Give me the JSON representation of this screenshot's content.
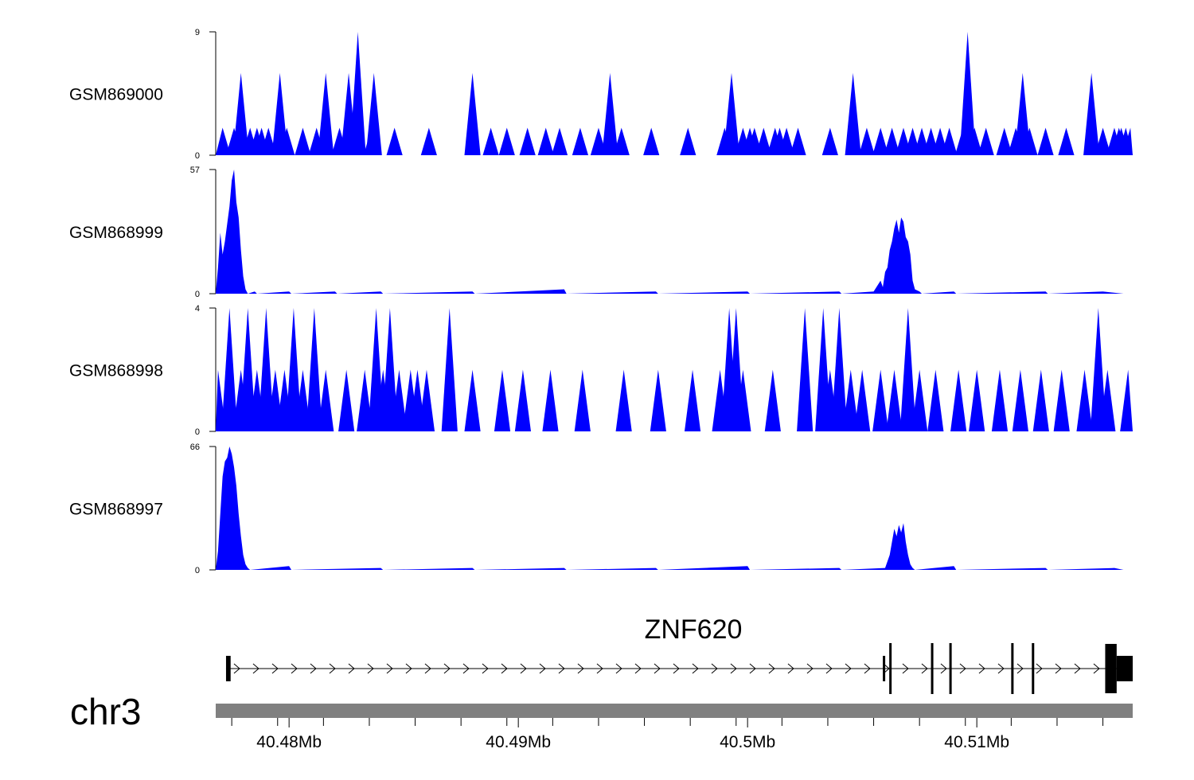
{
  "chart_data": {
    "type": "area",
    "chromosome": "chr3",
    "xlim": [
      40.4768,
      40.5168
    ],
    "x_ticks": [
      {
        "value": 40.48,
        "label": "40.48Mb"
      },
      {
        "value": 40.49,
        "label": "40.49Mb"
      },
      {
        "value": 40.5,
        "label": "40.5Mb"
      },
      {
        "value": 40.51,
        "label": "40.51Mb"
      }
    ],
    "tracks": [
      {
        "name": "GSM869000",
        "ylim": [
          0,
          9
        ],
        "y_tick_labels": [
          "0",
          "9"
        ],
        "color": "#0000ff",
        "peaks": [
          [
            40.4771,
            2
          ],
          [
            40.4776,
            2
          ],
          [
            40.4779,
            6
          ],
          [
            40.4783,
            2
          ],
          [
            40.4786,
            2
          ],
          [
            40.4788,
            2
          ],
          [
            40.4791,
            2
          ],
          [
            40.4795,
            2
          ],
          [
            40.4796,
            6
          ],
          [
            40.4799,
            2
          ],
          [
            40.4806,
            2
          ],
          [
            40.4812,
            2
          ],
          [
            40.4816,
            6
          ],
          [
            40.4822,
            2
          ],
          [
            40.4826,
            6
          ],
          [
            40.483,
            9
          ],
          [
            40.4836,
            2
          ],
          [
            40.4837,
            6
          ],
          [
            40.4846,
            2
          ],
          [
            40.4861,
            2
          ],
          [
            40.488,
            6
          ],
          [
            40.4888,
            2
          ],
          [
            40.4895,
            2
          ],
          [
            40.4904,
            2
          ],
          [
            40.4912,
            2
          ],
          [
            40.4918,
            2
          ],
          [
            40.4927,
            2
          ],
          [
            40.4935,
            2
          ],
          [
            40.494,
            6
          ],
          [
            40.4945,
            2
          ],
          [
            40.4958,
            2
          ],
          [
            40.4974,
            2
          ],
          [
            40.499,
            2
          ],
          [
            40.4993,
            6
          ],
          [
            40.4998,
            2
          ],
          [
            40.5001,
            2
          ],
          [
            40.5003,
            2
          ],
          [
            40.5007,
            2
          ],
          [
            40.5012,
            2
          ],
          [
            40.5014,
            2
          ],
          [
            40.5017,
            2
          ],
          [
            40.5022,
            2
          ],
          [
            40.5036,
            2
          ],
          [
            40.5046,
            6
          ],
          [
            40.5052,
            2
          ],
          [
            40.5058,
            2
          ],
          [
            40.5063,
            2
          ],
          [
            40.5068,
            2
          ],
          [
            40.5072,
            2
          ],
          [
            40.5076,
            2
          ],
          [
            40.508,
            2
          ],
          [
            40.5084,
            2
          ],
          [
            40.5088,
            2
          ],
          [
            40.5094,
            2
          ],
          [
            40.5096,
            9
          ],
          [
            40.5099,
            2
          ],
          [
            40.5104,
            2
          ],
          [
            40.5112,
            2
          ],
          [
            40.5117,
            2
          ],
          [
            40.512,
            6
          ],
          [
            40.5123,
            2
          ],
          [
            40.513,
            2
          ],
          [
            40.5139,
            2
          ],
          [
            40.515,
            6
          ],
          [
            40.5155,
            2
          ],
          [
            40.516,
            2
          ],
          [
            40.5162,
            2
          ],
          [
            40.5163,
            2
          ],
          [
            40.5165,
            2
          ],
          [
            40.5167,
            2
          ]
        ]
      },
      {
        "name": "GSM868999",
        "ylim": [
          0,
          57
        ],
        "y_tick_labels": [
          "0",
          "57"
        ],
        "color": "#0000ff",
        "profile": [
          [
            40.4768,
            0
          ],
          [
            40.4769,
            12
          ],
          [
            40.477,
            28
          ],
          [
            40.4771,
            18
          ],
          [
            40.4772,
            24
          ],
          [
            40.4773,
            32
          ],
          [
            40.4774,
            40
          ],
          [
            40.4775,
            52
          ],
          [
            40.4776,
            57
          ],
          [
            40.4777,
            42
          ],
          [
            40.4778,
            35
          ],
          [
            40.4779,
            20
          ],
          [
            40.478,
            8
          ],
          [
            40.4781,
            2
          ],
          [
            40.4782,
            0
          ],
          [
            40.4785,
            1
          ],
          [
            40.4786,
            0
          ],
          [
            40.48,
            1
          ],
          [
            40.4801,
            0
          ],
          [
            40.482,
            1
          ],
          [
            40.4821,
            0
          ],
          [
            40.484,
            1
          ],
          [
            40.4841,
            0
          ],
          [
            40.488,
            1
          ],
          [
            40.4881,
            0
          ],
          [
            40.492,
            2
          ],
          [
            40.4921,
            0
          ],
          [
            40.496,
            1
          ],
          [
            40.4961,
            0
          ],
          [
            40.5,
            1
          ],
          [
            40.5001,
            0
          ],
          [
            40.504,
            1
          ],
          [
            40.5041,
            0
          ],
          [
            40.5055,
            1
          ],
          [
            40.5058,
            6
          ],
          [
            40.5059,
            3
          ],
          [
            40.506,
            10
          ],
          [
            40.5061,
            12
          ],
          [
            40.5062,
            20
          ],
          [
            40.5063,
            24
          ],
          [
            40.5064,
            30
          ],
          [
            40.5065,
            34
          ],
          [
            40.5066,
            28
          ],
          [
            40.5067,
            35
          ],
          [
            40.5068,
            33
          ],
          [
            40.5069,
            26
          ],
          [
            40.507,
            24
          ],
          [
            40.5071,
            18
          ],
          [
            40.5072,
            6
          ],
          [
            40.5073,
            2
          ],
          [
            40.5075,
            1
          ],
          [
            40.5076,
            0
          ],
          [
            40.509,
            1
          ],
          [
            40.5091,
            0
          ],
          [
            40.513,
            1
          ],
          [
            40.5131,
            0
          ],
          [
            40.5155,
            1
          ],
          [
            40.5164,
            0
          ]
        ]
      },
      {
        "name": "GSM868998",
        "ylim": [
          0,
          4
        ],
        "y_tick_labels": [
          "0",
          "4"
        ],
        "color": "#0000ff",
        "peaks": [
          [
            40.4769,
            2
          ],
          [
            40.4774,
            4
          ],
          [
            40.4779,
            2
          ],
          [
            40.4782,
            4
          ],
          [
            40.4786,
            2
          ],
          [
            40.479,
            4
          ],
          [
            40.4794,
            2
          ],
          [
            40.4798,
            2
          ],
          [
            40.4802,
            4
          ],
          [
            40.4806,
            2
          ],
          [
            40.4811,
            4
          ],
          [
            40.4816,
            2
          ],
          [
            40.4825,
            2
          ],
          [
            40.4833,
            2
          ],
          [
            40.4838,
            4
          ],
          [
            40.4841,
            2
          ],
          [
            40.4844,
            4
          ],
          [
            40.4848,
            2
          ],
          [
            40.4853,
            2
          ],
          [
            40.4856,
            2
          ],
          [
            40.486,
            2
          ],
          [
            40.487,
            4
          ],
          [
            40.488,
            2
          ],
          [
            40.4893,
            2
          ],
          [
            40.4902,
            2
          ],
          [
            40.4914,
            2
          ],
          [
            40.4928,
            2
          ],
          [
            40.4946,
            2
          ],
          [
            40.4961,
            2
          ],
          [
            40.4976,
            2
          ],
          [
            40.4988,
            2
          ],
          [
            40.4992,
            4
          ],
          [
            40.4995,
            4
          ],
          [
            40.4998,
            2
          ],
          [
            40.5011,
            2
          ],
          [
            40.5025,
            4
          ],
          [
            40.5033,
            4
          ],
          [
            40.5036,
            2
          ],
          [
            40.504,
            4
          ],
          [
            40.5045,
            2
          ],
          [
            40.505,
            2
          ],
          [
            40.5058,
            2
          ],
          [
            40.5064,
            2
          ],
          [
            40.507,
            4
          ],
          [
            40.5075,
            2
          ],
          [
            40.5082,
            2
          ],
          [
            40.5092,
            2
          ],
          [
            40.51,
            2
          ],
          [
            40.511,
            2
          ],
          [
            40.5119,
            2
          ],
          [
            40.5128,
            2
          ],
          [
            40.5137,
            2
          ],
          [
            40.5147,
            2
          ],
          [
            40.5153,
            4
          ],
          [
            40.5157,
            2
          ],
          [
            40.5166,
            2
          ]
        ]
      },
      {
        "name": "GSM868997",
        "ylim": [
          0,
          66
        ],
        "y_tick_labels": [
          "0",
          "66"
        ],
        "color": "#0000ff",
        "profile": [
          [
            40.4768,
            0
          ],
          [
            40.4769,
            10
          ],
          [
            40.477,
            30
          ],
          [
            40.4771,
            50
          ],
          [
            40.4772,
            58
          ],
          [
            40.4773,
            60
          ],
          [
            40.4774,
            66
          ],
          [
            40.4775,
            62
          ],
          [
            40.4776,
            55
          ],
          [
            40.4777,
            45
          ],
          [
            40.4778,
            30
          ],
          [
            40.4779,
            18
          ],
          [
            40.478,
            8
          ],
          [
            40.4781,
            3
          ],
          [
            40.4782,
            1
          ],
          [
            40.4783,
            0
          ],
          [
            40.48,
            2
          ],
          [
            40.4801,
            0
          ],
          [
            40.484,
            1
          ],
          [
            40.4841,
            0
          ],
          [
            40.488,
            1
          ],
          [
            40.4881,
            0
          ],
          [
            40.492,
            1
          ],
          [
            40.4921,
            0
          ],
          [
            40.496,
            1
          ],
          [
            40.4961,
            0
          ],
          [
            40.5,
            2
          ],
          [
            40.5001,
            0
          ],
          [
            40.504,
            1
          ],
          [
            40.5041,
            0
          ],
          [
            40.506,
            1
          ],
          [
            40.5062,
            8
          ],
          [
            40.5063,
            15
          ],
          [
            40.5064,
            22
          ],
          [
            40.5065,
            18
          ],
          [
            40.5066,
            24
          ],
          [
            40.5067,
            20
          ],
          [
            40.5068,
            25
          ],
          [
            40.5069,
            15
          ],
          [
            40.507,
            8
          ],
          [
            40.5071,
            3
          ],
          [
            40.5072,
            1
          ],
          [
            40.5073,
            0
          ],
          [
            40.509,
            2
          ],
          [
            40.5091,
            0
          ],
          [
            40.513,
            1
          ],
          [
            40.5131,
            0
          ],
          [
            40.516,
            1
          ],
          [
            40.5164,
            0
          ]
        ]
      }
    ],
    "gene": {
      "name": "ZNF620",
      "strand": "+",
      "start": 40.47725,
      "end": 40.5168,
      "exons": [
        {
          "start": 40.47725,
          "end": 40.47745,
          "height": "full"
        },
        {
          "start": 40.5059,
          "end": 40.506,
          "height": "full"
        },
        {
          "start": 40.50618,
          "end": 40.50625,
          "height": "tall"
        },
        {
          "start": 40.508,
          "end": 40.50808,
          "height": "tall"
        },
        {
          "start": 40.5088,
          "end": 40.50888,
          "height": "tall"
        },
        {
          "start": 40.5115,
          "end": 40.51158,
          "height": "tall"
        },
        {
          "start": 40.5124,
          "end": 40.51248,
          "height": "tall"
        },
        {
          "start": 40.5156,
          "end": 40.5161,
          "height": "utr_block"
        },
        {
          "start": 40.5161,
          "end": 40.5168,
          "height": "full"
        }
      ]
    },
    "colors": {
      "signal": "#0000ff",
      "axis": "#000000",
      "chrom_bar": "#808080"
    }
  }
}
